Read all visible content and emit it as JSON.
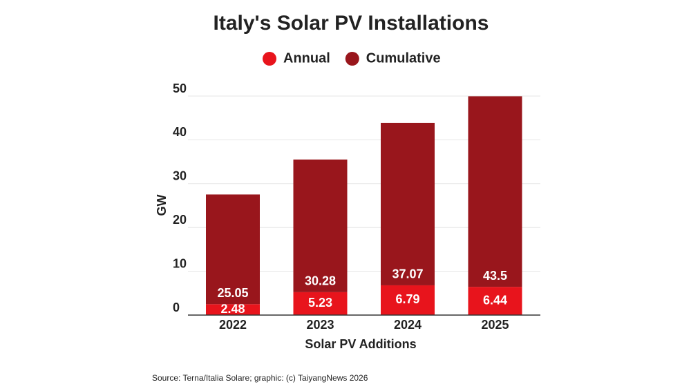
{
  "chart_data": {
    "type": "stacked-bar",
    "title": "Italy's Solar PV Installations",
    "x_label": "Solar PV Additions",
    "y_label": "GW",
    "categories": [
      "2022",
      "2023",
      "2024",
      "2025"
    ],
    "series": [
      {
        "name": "Annual",
        "color": "#e8141c",
        "values": [
          2.48,
          5.23,
          6.79,
          6.44
        ]
      },
      {
        "name": "Cumulative",
        "color": "#99161c",
        "values": [
          25.05,
          30.28,
          37.07,
          43.5
        ]
      }
    ],
    "ylim": [
      0,
      50
    ],
    "yticks": [
      0,
      10,
      20,
      30,
      40,
      50
    ],
    "grid": true,
    "source": "Source: Terna/Italia Solare; graphic: (c) TaiyangNews 2026"
  }
}
